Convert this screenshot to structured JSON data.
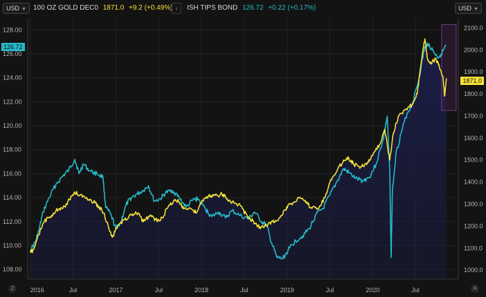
{
  "header": {
    "left_currency": "USD",
    "right_currency": "USD",
    "series1": {
      "name": "100 OZ GOLD DEC0",
      "last": "1871.0",
      "change": "+9.2 (+0.49%)"
    },
    "series2": {
      "name": "ISH TIPS BOND",
      "last": "126.72",
      "change": "+0.22 (+0.17%)"
    },
    "nav_icon": "chevron-left-icon"
  },
  "price_tags": {
    "left": "126.72",
    "right": "1871.0"
  },
  "bottom_icons": {
    "left": "Z",
    "right": "A"
  },
  "colors": {
    "background": "#131313",
    "gold_line": "#f5e23a",
    "tips_line": "#27b9c9",
    "area_fill": "#1b1e4a",
    "highlight_box": "#7a3a8a",
    "highlight_fill": "#3a1f44"
  },
  "chart_data": {
    "type": "line",
    "x_labels": [
      "2016",
      "Jul",
      "2017",
      "Jul",
      "2018",
      "Jul",
      "2019",
      "Jul",
      "2020",
      "Jul"
    ],
    "left_axis": {
      "ticks": [
        "128.00",
        "126.00",
        "124.00",
        "122.00",
        "120.00",
        "118.00",
        "116.00",
        "114.00",
        "112.00",
        "110.00",
        "108.00"
      ],
      "min": 107.2,
      "max": 129
    },
    "right_axis": {
      "ticks": [
        "2100.0",
        "2000.0",
        "1900.0",
        "1800.0",
        "1700.0",
        "1600.0",
        "1500.0",
        "1400.0",
        "1300.0",
        "1200.0",
        "1100.0",
        "1000.0"
      ],
      "min": 960,
      "max": 2145
    },
    "grid": true,
    "series": [
      {
        "name": "ISH TIPS BOND",
        "axis": "left",
        "points": [
          [
            2016.0,
            109.6
          ],
          [
            2016.06,
            110.3
          ],
          [
            2016.1,
            111.2
          ],
          [
            2016.15,
            112.8
          ],
          [
            2016.22,
            114.0
          ],
          [
            2016.3,
            115.1
          ],
          [
            2016.38,
            115.8
          ],
          [
            2016.45,
            116.3
          ],
          [
            2016.52,
            117.2
          ],
          [
            2016.57,
            116.0
          ],
          [
            2016.62,
            116.8
          ],
          [
            2016.7,
            116.2
          ],
          [
            2016.78,
            116.0
          ],
          [
            2016.85,
            115.7
          ],
          [
            2016.88,
            113.2
          ],
          [
            2016.94,
            112.6
          ],
          [
            2017.0,
            111.4
          ],
          [
            2017.06,
            112.0
          ],
          [
            2017.12,
            113.4
          ],
          [
            2017.18,
            114.0
          ],
          [
            2017.25,
            114.3
          ],
          [
            2017.32,
            114.6
          ],
          [
            2017.38,
            115.0
          ],
          [
            2017.45,
            113.7
          ],
          [
            2017.52,
            113.9
          ],
          [
            2017.58,
            114.4
          ],
          [
            2017.66,
            114.6
          ],
          [
            2017.74,
            114.0
          ],
          [
            2017.82,
            113.2
          ],
          [
            2017.9,
            113.8
          ],
          [
            2017.96,
            113.9
          ],
          [
            2018.05,
            113.0
          ],
          [
            2018.12,
            112.4
          ],
          [
            2018.2,
            112.8
          ],
          [
            2018.28,
            112.3
          ],
          [
            2018.36,
            112.9
          ],
          [
            2018.45,
            112.5
          ],
          [
            2018.55,
            112.2
          ],
          [
            2018.62,
            112.8
          ],
          [
            2018.7,
            112.0
          ],
          [
            2018.76,
            111.7
          ],
          [
            2018.82,
            110.2
          ],
          [
            2018.88,
            109.0
          ],
          [
            2018.95,
            108.9
          ],
          [
            2019.03,
            109.8
          ],
          [
            2019.1,
            110.4
          ],
          [
            2019.18,
            110.8
          ],
          [
            2019.26,
            111.4
          ],
          [
            2019.34,
            112.6
          ],
          [
            2019.42,
            113.1
          ],
          [
            2019.5,
            114.2
          ],
          [
            2019.58,
            115.3
          ],
          [
            2019.66,
            116.4
          ],
          [
            2019.72,
            116.1
          ],
          [
            2019.8,
            115.6
          ],
          [
            2019.88,
            115.4
          ],
          [
            2019.96,
            115.7
          ],
          [
            2020.04,
            116.8
          ],
          [
            2020.12,
            118.8
          ],
          [
            2020.17,
            120.8
          ],
          [
            2020.2,
            116.0
          ],
          [
            2020.215,
            109.0
          ],
          [
            2020.23,
            114.5
          ],
          [
            2020.27,
            117.6
          ],
          [
            2020.34,
            119.6
          ],
          [
            2020.4,
            121.0
          ],
          [
            2020.46,
            121.8
          ],
          [
            2020.54,
            123.9
          ],
          [
            2020.6,
            126.3
          ],
          [
            2020.64,
            126.9
          ],
          [
            2020.7,
            126.3
          ],
          [
            2020.76,
            125.7
          ],
          [
            2020.8,
            126.0
          ],
          [
            2020.86,
            126.7
          ]
        ]
      },
      {
        "name": "100 OZ GOLD DEC0",
        "axis": "right",
        "points": [
          [
            2016.0,
            1080
          ],
          [
            2016.04,
            1095
          ],
          [
            2016.1,
            1160
          ],
          [
            2016.16,
            1220
          ],
          [
            2016.22,
            1240
          ],
          [
            2016.3,
            1270
          ],
          [
            2016.38,
            1280
          ],
          [
            2016.46,
            1320
          ],
          [
            2016.52,
            1355
          ],
          [
            2016.58,
            1340
          ],
          [
            2016.66,
            1330
          ],
          [
            2016.74,
            1310
          ],
          [
            2016.8,
            1290
          ],
          [
            2016.86,
            1260
          ],
          [
            2016.92,
            1185
          ],
          [
            2016.96,
            1150
          ],
          [
            2017.02,
            1200
          ],
          [
            2017.1,
            1230
          ],
          [
            2017.18,
            1250
          ],
          [
            2017.26,
            1260
          ],
          [
            2017.32,
            1220
          ],
          [
            2017.4,
            1250
          ],
          [
            2017.46,
            1230
          ],
          [
            2017.52,
            1225
          ],
          [
            2017.6,
            1280
          ],
          [
            2017.68,
            1320
          ],
          [
            2017.74,
            1310
          ],
          [
            2017.8,
            1280
          ],
          [
            2017.88,
            1280
          ],
          [
            2017.94,
            1260
          ],
          [
            2018.0,
            1310
          ],
          [
            2018.08,
            1335
          ],
          [
            2018.16,
            1340
          ],
          [
            2018.24,
            1345
          ],
          [
            2018.3,
            1325
          ],
          [
            2018.38,
            1305
          ],
          [
            2018.46,
            1290
          ],
          [
            2018.54,
            1240
          ],
          [
            2018.6,
            1225
          ],
          [
            2018.66,
            1200
          ],
          [
            2018.72,
            1195
          ],
          [
            2018.8,
            1215
          ],
          [
            2018.86,
            1225
          ],
          [
            2018.92,
            1240
          ],
          [
            2018.98,
            1275
          ],
          [
            2019.04,
            1300
          ],
          [
            2019.12,
            1325
          ],
          [
            2019.2,
            1315
          ],
          [
            2019.28,
            1285
          ],
          [
            2019.36,
            1280
          ],
          [
            2019.44,
            1330
          ],
          [
            2019.5,
            1400
          ],
          [
            2019.58,
            1450
          ],
          [
            2019.66,
            1500
          ],
          [
            2019.72,
            1510
          ],
          [
            2019.78,
            1480
          ],
          [
            2019.86,
            1470
          ],
          [
            2019.94,
            1490
          ],
          [
            2020.0,
            1520
          ],
          [
            2020.08,
            1570
          ],
          [
            2020.14,
            1640
          ],
          [
            2020.2,
            1500
          ],
          [
            2020.24,
            1620
          ],
          [
            2020.3,
            1700
          ],
          [
            2020.38,
            1730
          ],
          [
            2020.46,
            1750
          ],
          [
            2020.52,
            1800
          ],
          [
            2020.58,
            1980
          ],
          [
            2020.61,
            2050
          ],
          [
            2020.64,
            1960
          ],
          [
            2020.68,
            1940
          ],
          [
            2020.74,
            1960
          ],
          [
            2020.78,
            1920
          ],
          [
            2020.82,
            1880
          ],
          [
            2020.84,
            1790
          ],
          [
            2020.86,
            1871
          ]
        ]
      }
    ],
    "highlight_region": {
      "x_from": 2020.805,
      "x_to": 2020.975,
      "y_from_right": 1725,
      "y_to_right": 2115
    }
  }
}
